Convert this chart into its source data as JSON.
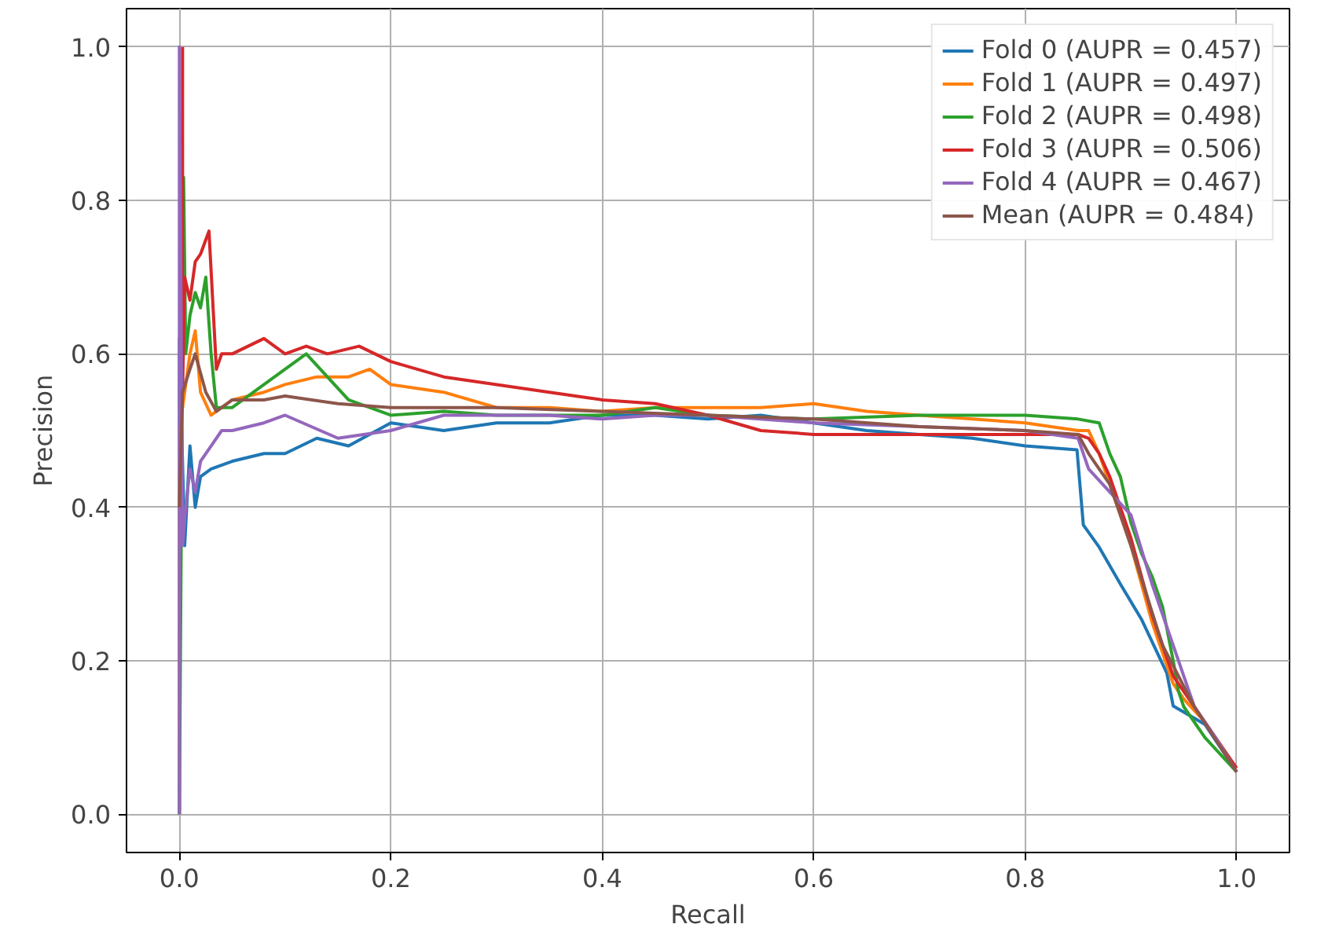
{
  "chart_data": {
    "type": "line",
    "xlabel": "Recall",
    "ylabel": "Precision",
    "xlim": [
      -0.05,
      1.05
    ],
    "ylim": [
      -0.05,
      1.05
    ],
    "xticks": [
      {
        "value": 0,
        "label": "0.0"
      },
      {
        "value": 0.2,
        "label": "0.2"
      },
      {
        "value": 0.4,
        "label": "0.4"
      },
      {
        "value": 0.6,
        "label": "0.6"
      },
      {
        "value": 0.8,
        "label": "0.8"
      },
      {
        "value": 1,
        "label": "1.0"
      }
    ],
    "yticks": [
      {
        "value": 0,
        "label": "0.0"
      },
      {
        "value": 0.2,
        "label": "0.2"
      },
      {
        "value": 0.4,
        "label": "0.4"
      },
      {
        "value": 0.6,
        "label": "0.6"
      },
      {
        "value": 0.8,
        "label": "0.8"
      },
      {
        "value": 1,
        "label": "1.0"
      }
    ],
    "grid": true,
    "legend": "top right",
    "line_style": "solid",
    "series": [
      {
        "name": "Fold 0 (AUPR = 0.457)",
        "color": "#1f77b4",
        "x": [
          0,
          0,
          0.005,
          0.01,
          0.015,
          0.02,
          0.03,
          0.05,
          0.08,
          0.1,
          0.13,
          0.16,
          0.2,
          0.25,
          0.3,
          0.35,
          0.4,
          0.45,
          0.5,
          0.55,
          0.6,
          0.65,
          0.7,
          0.75,
          0.8,
          0.849,
          0.855,
          0.87,
          0.89,
          0.91,
          0.934,
          0.94,
          0.97,
          1.0
        ],
        "values": [
          0,
          0.62,
          0.35,
          0.48,
          0.4,
          0.44,
          0.45,
          0.46,
          0.47,
          0.47,
          0.49,
          0.48,
          0.51,
          0.5,
          0.51,
          0.51,
          0.52,
          0.52,
          0.515,
          0.52,
          0.51,
          0.5,
          0.495,
          0.49,
          0.48,
          0.475,
          0.377,
          0.348,
          0.3,
          0.254,
          0.184,
          0.141,
          0.117,
          0.055
        ]
      },
      {
        "name": "Fold 1 (AUPR = 0.497)",
        "color": "#ff7f0e",
        "x": [
          0,
          0,
          0.005,
          0.01,
          0.015,
          0.02,
          0.03,
          0.05,
          0.08,
          0.1,
          0.13,
          0.16,
          0.18,
          0.2,
          0.25,
          0.3,
          0.35,
          0.4,
          0.45,
          0.5,
          0.55,
          0.6,
          0.65,
          0.7,
          0.75,
          0.8,
          0.85,
          0.86,
          0.87,
          0.88,
          0.9,
          0.92,
          0.94,
          0.95,
          0.97,
          1.0
        ],
        "values": [
          0,
          0.5,
          0.55,
          0.6,
          0.63,
          0.55,
          0.52,
          0.54,
          0.55,
          0.56,
          0.57,
          0.57,
          0.58,
          0.56,
          0.55,
          0.53,
          0.53,
          0.525,
          0.53,
          0.53,
          0.53,
          0.535,
          0.525,
          0.52,
          0.515,
          0.51,
          0.5,
          0.5,
          0.47,
          0.43,
          0.35,
          0.25,
          0.17,
          0.15,
          0.12,
          0.055
        ]
      },
      {
        "name": "Fold 2 (AUPR = 0.498)",
        "color": "#2ca02c",
        "x": [
          0,
          0.004,
          0.006,
          0.01,
          0.015,
          0.02,
          0.025,
          0.03,
          0.035,
          0.05,
          0.08,
          0.1,
          0.12,
          0.16,
          0.2,
          0.25,
          0.3,
          0.35,
          0.4,
          0.45,
          0.5,
          0.6,
          0.7,
          0.8,
          0.85,
          0.87,
          0.88,
          0.89,
          0.9,
          0.91,
          0.92,
          0.93,
          0.94,
          0.945,
          0.95,
          0.97,
          1.0
        ],
        "values": [
          0,
          0.83,
          0.6,
          0.65,
          0.68,
          0.66,
          0.7,
          0.6,
          0.53,
          0.53,
          0.56,
          0.58,
          0.6,
          0.54,
          0.52,
          0.525,
          0.52,
          0.52,
          0.52,
          0.53,
          0.52,
          0.515,
          0.52,
          0.52,
          0.515,
          0.51,
          0.47,
          0.44,
          0.38,
          0.34,
          0.31,
          0.27,
          0.2,
          0.16,
          0.14,
          0.1,
          0.055
        ]
      },
      {
        "name": "Fold 3 (AUPR = 0.506)",
        "color": "#d62728",
        "x": [
          0.003,
          0.003,
          0.005,
          0.01,
          0.015,
          0.02,
          0.028,
          0.035,
          0.04,
          0.05,
          0.08,
          0.1,
          0.12,
          0.14,
          0.17,
          0.2,
          0.25,
          0.3,
          0.35,
          0.4,
          0.45,
          0.5,
          0.55,
          0.6,
          0.7,
          0.8,
          0.85,
          0.86,
          0.87,
          0.88,
          0.9,
          0.92,
          0.94,
          0.96,
          0.98,
          1.0
        ],
        "values": [
          1.0,
          0.55,
          0.7,
          0.67,
          0.72,
          0.73,
          0.76,
          0.58,
          0.6,
          0.6,
          0.62,
          0.6,
          0.61,
          0.6,
          0.61,
          0.59,
          0.57,
          0.56,
          0.55,
          0.54,
          0.535,
          0.52,
          0.5,
          0.495,
          0.495,
          0.495,
          0.495,
          0.49,
          0.47,
          0.44,
          0.36,
          0.26,
          0.18,
          0.14,
          0.1,
          0.06
        ]
      },
      {
        "name": "Fold 4 (AUPR = 0.467)",
        "color": "#9467bd",
        "x": [
          0,
          0,
          0.003,
          0.006,
          0.01,
          0.015,
          0.02,
          0.03,
          0.04,
          0.05,
          0.08,
          0.1,
          0.15,
          0.2,
          0.25,
          0.3,
          0.35,
          0.4,
          0.45,
          0.5,
          0.6,
          0.7,
          0.8,
          0.85,
          0.86,
          0.88,
          0.9,
          0.92,
          0.94,
          0.96,
          0.98,
          1.0
        ],
        "values": [
          0,
          1.0,
          0.35,
          0.4,
          0.45,
          0.42,
          0.46,
          0.48,
          0.5,
          0.5,
          0.51,
          0.52,
          0.49,
          0.5,
          0.52,
          0.52,
          0.52,
          0.515,
          0.52,
          0.52,
          0.51,
          0.505,
          0.5,
          0.49,
          0.45,
          0.42,
          0.39,
          0.3,
          0.22,
          0.14,
          0.1,
          0.055
        ]
      },
      {
        "name": "Mean (AUPR = 0.484)",
        "color": "#8c564b",
        "x": [
          0,
          0.003,
          0.01,
          0.015,
          0.025,
          0.035,
          0.05,
          0.08,
          0.1,
          0.15,
          0.2,
          0.3,
          0.4,
          0.5,
          0.6,
          0.7,
          0.8,
          0.85,
          0.86,
          0.88,
          0.9,
          0.93,
          0.96,
          1.0
        ],
        "values": [
          0.4,
          0.55,
          0.58,
          0.6,
          0.55,
          0.525,
          0.54,
          0.54,
          0.545,
          0.535,
          0.53,
          0.53,
          0.525,
          0.52,
          0.515,
          0.505,
          0.5,
          0.495,
          0.47,
          0.43,
          0.35,
          0.22,
          0.14,
          0.055
        ]
      }
    ]
  }
}
